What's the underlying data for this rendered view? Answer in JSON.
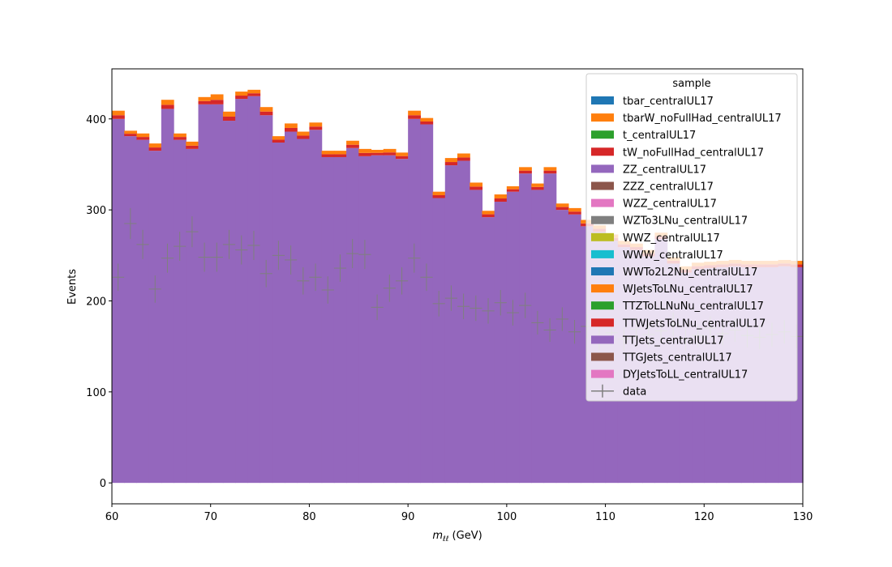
{
  "chart_data": {
    "type": "bar",
    "stacked": true,
    "histogram": true,
    "xlabel_main": "m",
    "xlabel_sub": "ℓℓ",
    "xlabel_unit": " (GeV)",
    "ylabel": "Events",
    "xlim": [
      60,
      130
    ],
    "ylim": [
      -23,
      455
    ],
    "xticks": [
      60,
      70,
      80,
      90,
      100,
      110,
      120,
      130
    ],
    "yticks": [
      0,
      100,
      200,
      300,
      400
    ],
    "bin_width": 1.25,
    "legend_title": "sample",
    "legend_loc": "upper right",
    "legend_entries": [
      {
        "label": "tbar_centralUL17",
        "color": "#1f77b4"
      },
      {
        "label": "tbarW_noFullHad_centralUL17",
        "color": "#ff7f0e"
      },
      {
        "label": "t_centralUL17",
        "color": "#2ca02c"
      },
      {
        "label": "tW_noFullHad_centralUL17",
        "color": "#d62728"
      },
      {
        "label": "ZZ_centralUL17",
        "color": "#9467bd"
      },
      {
        "label": "ZZZ_centralUL17",
        "color": "#8c564b"
      },
      {
        "label": "WZZ_centralUL17",
        "color": "#e377c2"
      },
      {
        "label": "WZTo3LNu_centralUL17",
        "color": "#7f7f7f"
      },
      {
        "label": "WWZ_centralUL17",
        "color": "#bcbd22"
      },
      {
        "label": "WWW_centralUL17",
        "color": "#17becf"
      },
      {
        "label": "WWTo2L2Nu_centralUL17",
        "color": "#1f77b4"
      },
      {
        "label": "WJetsToLNu_centralUL17",
        "color": "#ff7f0e"
      },
      {
        "label": "TTZToLLNuNu_centralUL17",
        "color": "#2ca02c"
      },
      {
        "label": "TTWJetsToLNu_centralUL17",
        "color": "#d62728"
      },
      {
        "label": "TTJets_centralUL17",
        "color": "#9467bd"
      },
      {
        "label": "TTGJets_centralUL17",
        "color": "#8c564b"
      },
      {
        "label": "DYJetsToLL_centralUL17",
        "color": "#e377c2"
      }
    ],
    "data_label": "data",
    "data_color": "#7f7f7f",
    "mc_total": [
      409,
      387,
      384,
      373,
      421,
      384,
      375,
      424,
      427,
      408,
      430,
      432,
      413,
      381,
      395,
      386,
      396,
      365,
      365,
      376,
      367,
      366,
      367,
      363,
      409,
      401,
      320,
      357,
      362,
      330,
      299,
      317,
      326,
      347,
      329,
      347,
      307,
      302,
      289,
      283,
      273,
      266,
      263,
      256,
      275,
      248,
      238,
      242,
      243,
      244,
      245,
      244,
      244,
      244,
      245,
      244,
      243,
      243
    ],
    "ttjets_top": [
      400,
      381,
      377,
      365,
      411,
      377,
      367,
      416,
      416,
      398,
      422,
      425,
      404,
      374,
      386,
      378,
      388,
      358,
      358,
      368,
      359,
      360,
      360,
      356,
      400,
      394,
      313,
      349,
      354,
      322,
      292,
      309,
      320,
      340,
      322,
      340,
      300,
      295,
      282,
      276,
      266,
      259,
      256,
      249,
      268,
      241,
      231,
      235,
      236,
      237,
      238,
      237,
      237,
      237,
      238,
      237,
      236,
      236
    ],
    "data_values": [
      226,
      285,
      262,
      213,
      247,
      260,
      276,
      248,
      248,
      262,
      256,
      261,
      230,
      250,
      245,
      222,
      226,
      212,
      236,
      252,
      251,
      193,
      214,
      222,
      247,
      226,
      197,
      203,
      194,
      192,
      189,
      198,
      187,
      195,
      176,
      168,
      180,
      166,
      172,
      159,
      165,
      158,
      169,
      163,
      167,
      174,
      158,
      162,
      170,
      164,
      168,
      162,
      160,
      163,
      166,
      161,
      160,
      158
    ],
    "data_errors": [
      15,
      17,
      16,
      15,
      16,
      16,
      17,
      16,
      16,
      16,
      16,
      16,
      15,
      16,
      16,
      15,
      15,
      15,
      15,
      16,
      16,
      14,
      15,
      15,
      16,
      15,
      14,
      14,
      14,
      14,
      14,
      14,
      14,
      14,
      13,
      13,
      13,
      13,
      13,
      13,
      13,
      13,
      13,
      13,
      13,
      13,
      13,
      13,
      13,
      13,
      13,
      13,
      13,
      13,
      13,
      13,
      13,
      13
    ]
  }
}
